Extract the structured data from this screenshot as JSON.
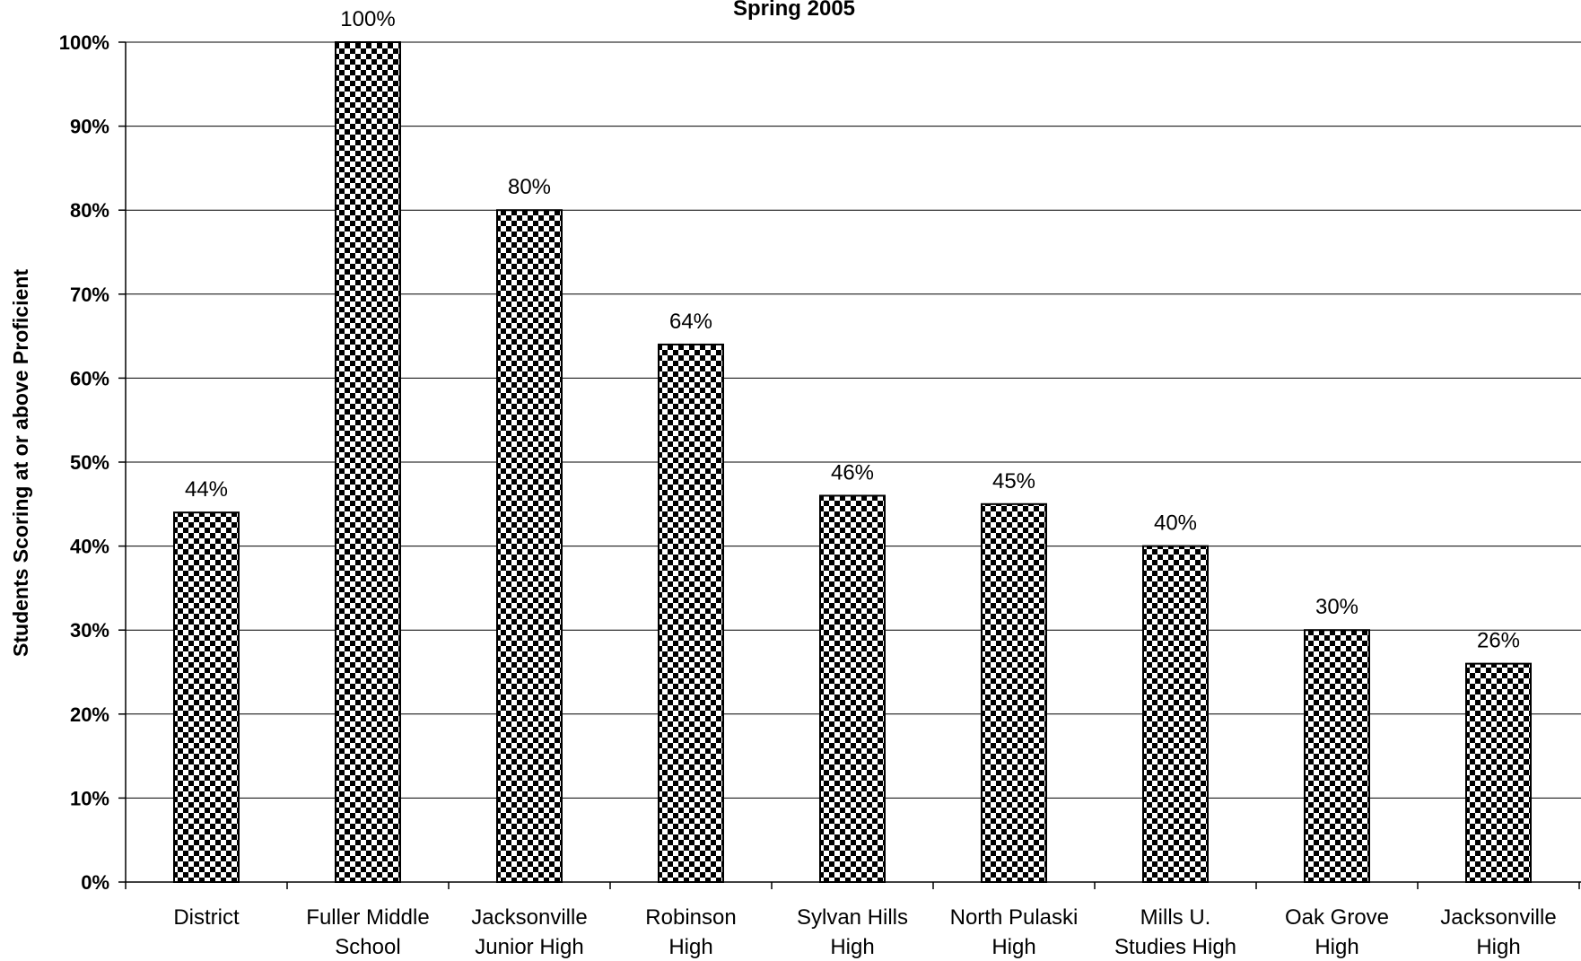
{
  "chart_data": {
    "type": "bar",
    "title": "Spring 2005",
    "xlabel": "",
    "ylabel": "Students Scoring at or above Proficient",
    "categories": [
      [
        "District"
      ],
      [
        "Fuller Middle",
        "School"
      ],
      [
        "Jacksonville",
        "Junior High"
      ],
      [
        "Robinson",
        "High"
      ],
      [
        "Sylvan Hills",
        "High"
      ],
      [
        "North Pulaski",
        "High"
      ],
      [
        "Mills U.",
        "Studies High"
      ],
      [
        "Oak Grove",
        "High"
      ],
      [
        "Jacksonville",
        "High"
      ]
    ],
    "values": [
      44,
      100,
      80,
      64,
      46,
      45,
      40,
      30,
      26
    ],
    "data_labels": [
      "44%",
      "100%",
      "80%",
      "64%",
      "46%",
      "45%",
      "40%",
      "30%",
      "26%"
    ],
    "y_ticks": [
      "0%",
      "10%",
      "20%",
      "30%",
      "40%",
      "50%",
      "60%",
      "70%",
      "80%",
      "90%",
      "100%"
    ],
    "ylim": [
      0,
      100
    ],
    "grid": true,
    "legend": "none",
    "bar_pattern": "checkerboard",
    "colors": {
      "bar_fill_dark": "#000000",
      "bar_fill_light": "#ffffff",
      "grid": "#000000",
      "text": "#000000"
    }
  }
}
